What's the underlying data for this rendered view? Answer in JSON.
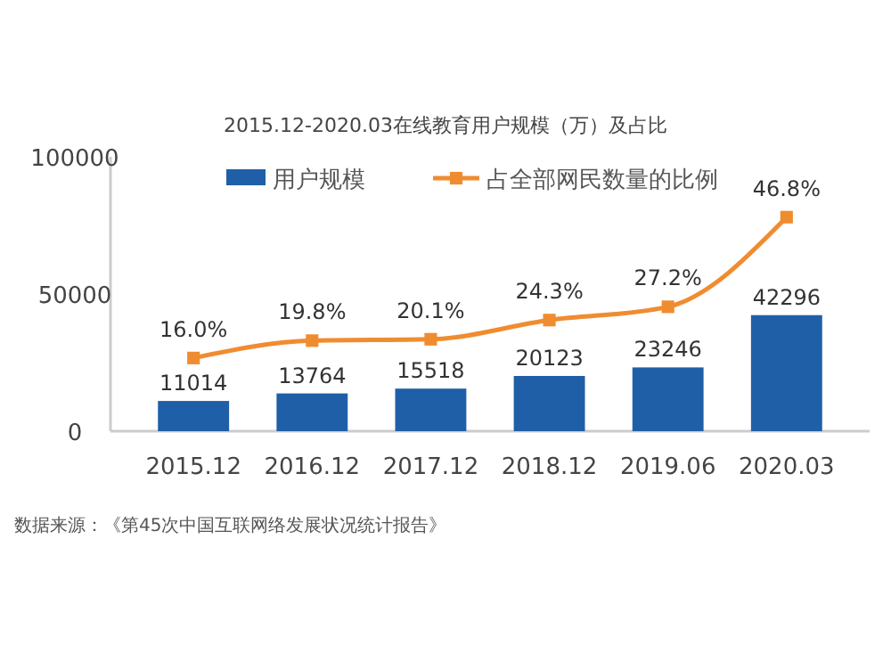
{
  "chart_data": {
    "type": "bar",
    "title": "2015.12-2020.03在线教育用户规模（万）及占比",
    "categories": [
      "2015.12",
      "2016.12",
      "2017.12",
      "2018.12",
      "2019.06",
      "2020.03"
    ],
    "series": [
      {
        "name": "用户规模",
        "color": "#1f5fa8",
        "values": [
          11014,
          13764,
          15518,
          20123,
          23246,
          42296
        ],
        "value_labels": [
          "11014",
          "13764",
          "15518",
          "20123",
          "23246",
          "42296"
        ]
      },
      {
        "name": "占全部网民数量的比例",
        "type": "line",
        "axis": "y2",
        "color": "#f08c30",
        "values": [
          16.0,
          19.8,
          20.1,
          24.3,
          27.2,
          46.8
        ],
        "value_labels": [
          "16.0%",
          "19.8%",
          "20.1%",
          "24.3%",
          "27.2%",
          "46.8%"
        ]
      }
    ],
    "ylim": [
      0,
      100000
    ],
    "yticks": [
      0,
      50000,
      100000
    ],
    "y2lim": [
      0,
      60
    ],
    "grid": false,
    "legend": "top",
    "marker": "square",
    "annotations": [
      "数据来源：《第45次中国互联网络发展状况统计报告》"
    ]
  }
}
